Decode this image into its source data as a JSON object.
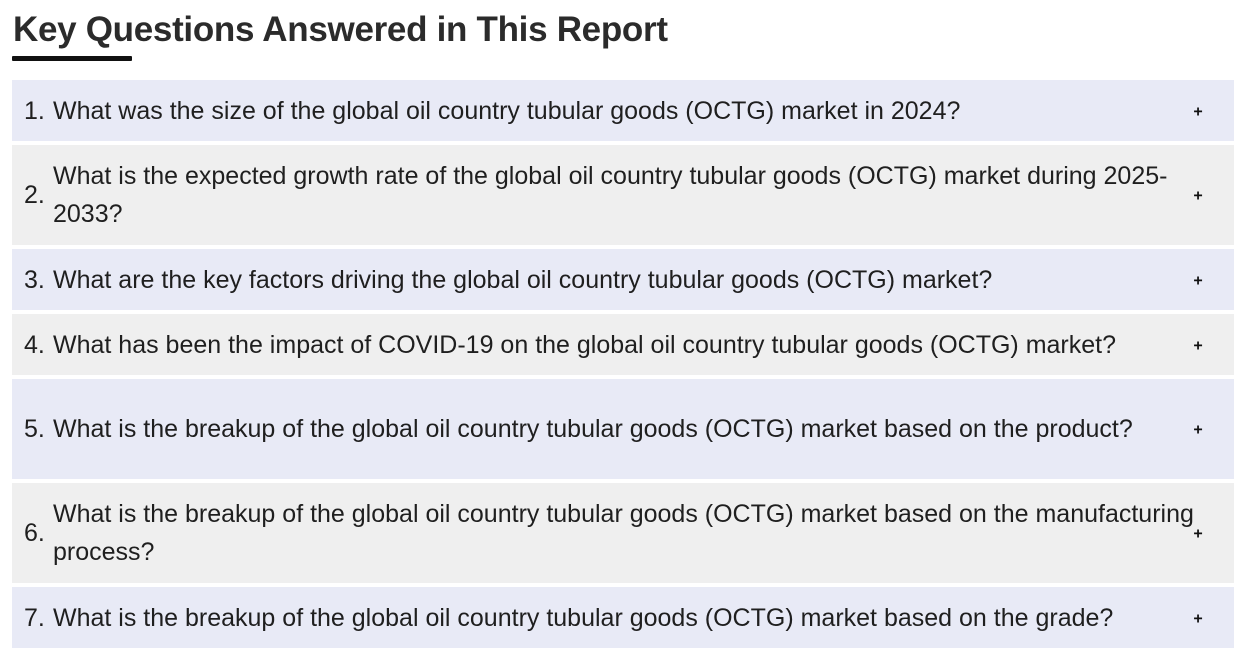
{
  "header": {
    "title": "Key Questions Answered in This Report"
  },
  "faq": {
    "items": [
      {
        "number": "1.",
        "question": "What was the size of the global oil country tubular goods (OCTG) market in 2024?",
        "toggle": "+"
      },
      {
        "number": "2.",
        "question": "What is the expected growth rate of the global oil country tubular goods (OCTG) market during 2025-2033?",
        "toggle": "+"
      },
      {
        "number": "3.",
        "question": "What are the key factors driving the global oil country tubular goods (OCTG) market?",
        "toggle": "+"
      },
      {
        "number": "4.",
        "question": "What has been the impact of COVID-19 on the global oil country tubular goods (OCTG) market?",
        "toggle": "+"
      },
      {
        "number": "5.",
        "question": "What is the breakup of the global oil country tubular goods (OCTG) market based on the product?",
        "toggle": "+"
      },
      {
        "number": "6.",
        "question": "What is the breakup of the global oil country tubular goods (OCTG) market based on the manufacturing process?",
        "toggle": "+"
      },
      {
        "number": "7.",
        "question": "What is the breakup of the global oil country tubular goods (OCTG) market based on the grade?",
        "toggle": "+"
      }
    ]
  },
  "colors": {
    "row_a": "#e8eaf6",
    "row_b": "#efefef",
    "underline": "#111111"
  },
  "icons": {
    "toggle": "plus-icon"
  }
}
